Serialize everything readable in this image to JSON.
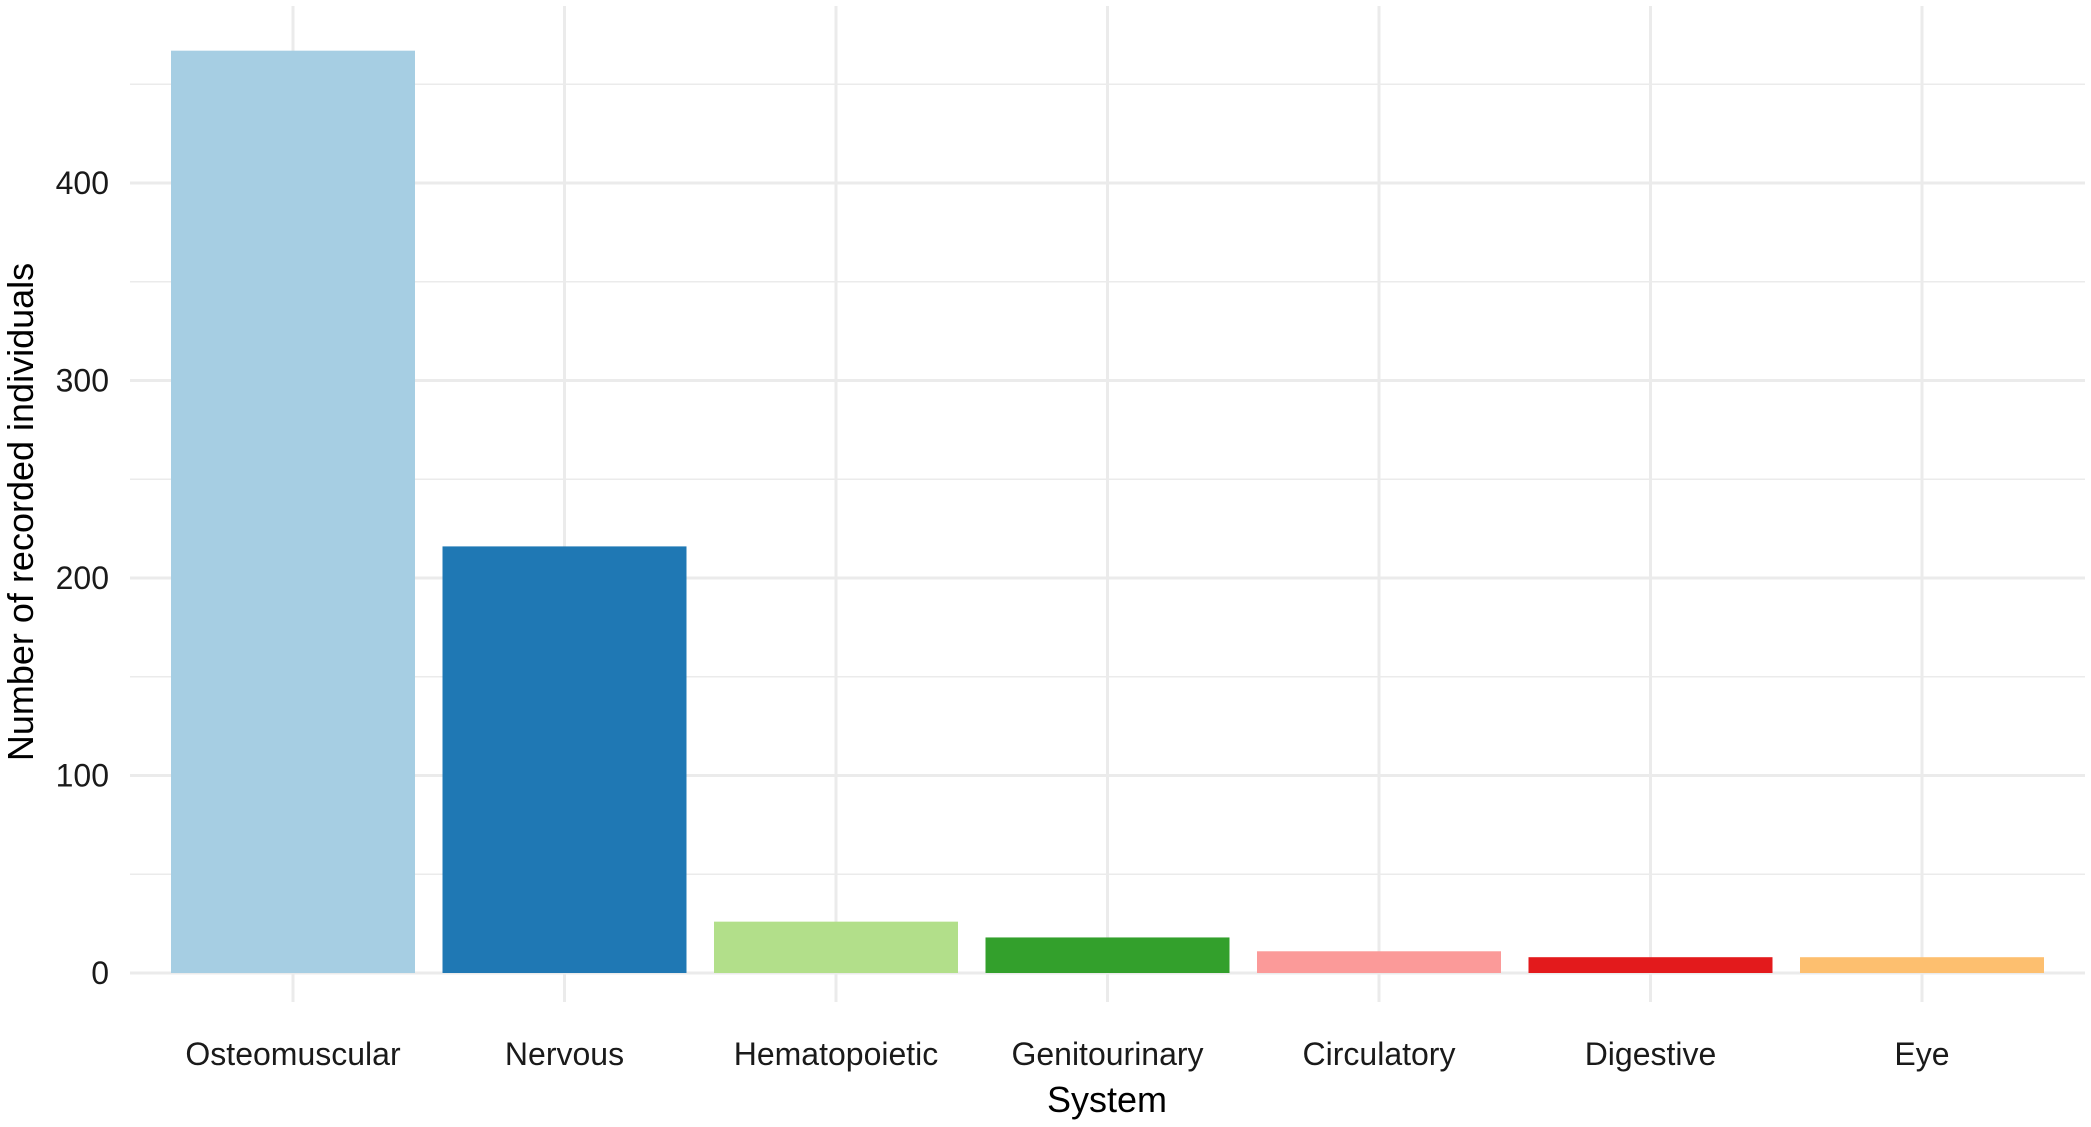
{
  "chart_data": {
    "type": "bar",
    "categories": [
      "Osteomuscular",
      "Nervous",
      "Hematopoietic",
      "Genitourinary",
      "Circulatory",
      "Digestive",
      "Eye"
    ],
    "values": [
      467,
      216,
      26,
      18,
      11,
      8,
      8
    ],
    "colors": [
      "#a6cee3",
      "#1f78b4",
      "#b2df8a",
      "#33a02c",
      "#fb9a99",
      "#e31a1c",
      "#fdbf6f"
    ],
    "xlabel": "System",
    "ylabel": "Number of recorded individuals",
    "ylim": [
      0,
      490
    ],
    "yticks": [
      0,
      100,
      200,
      300,
      400
    ],
    "grid": true,
    "legend": "none"
  }
}
